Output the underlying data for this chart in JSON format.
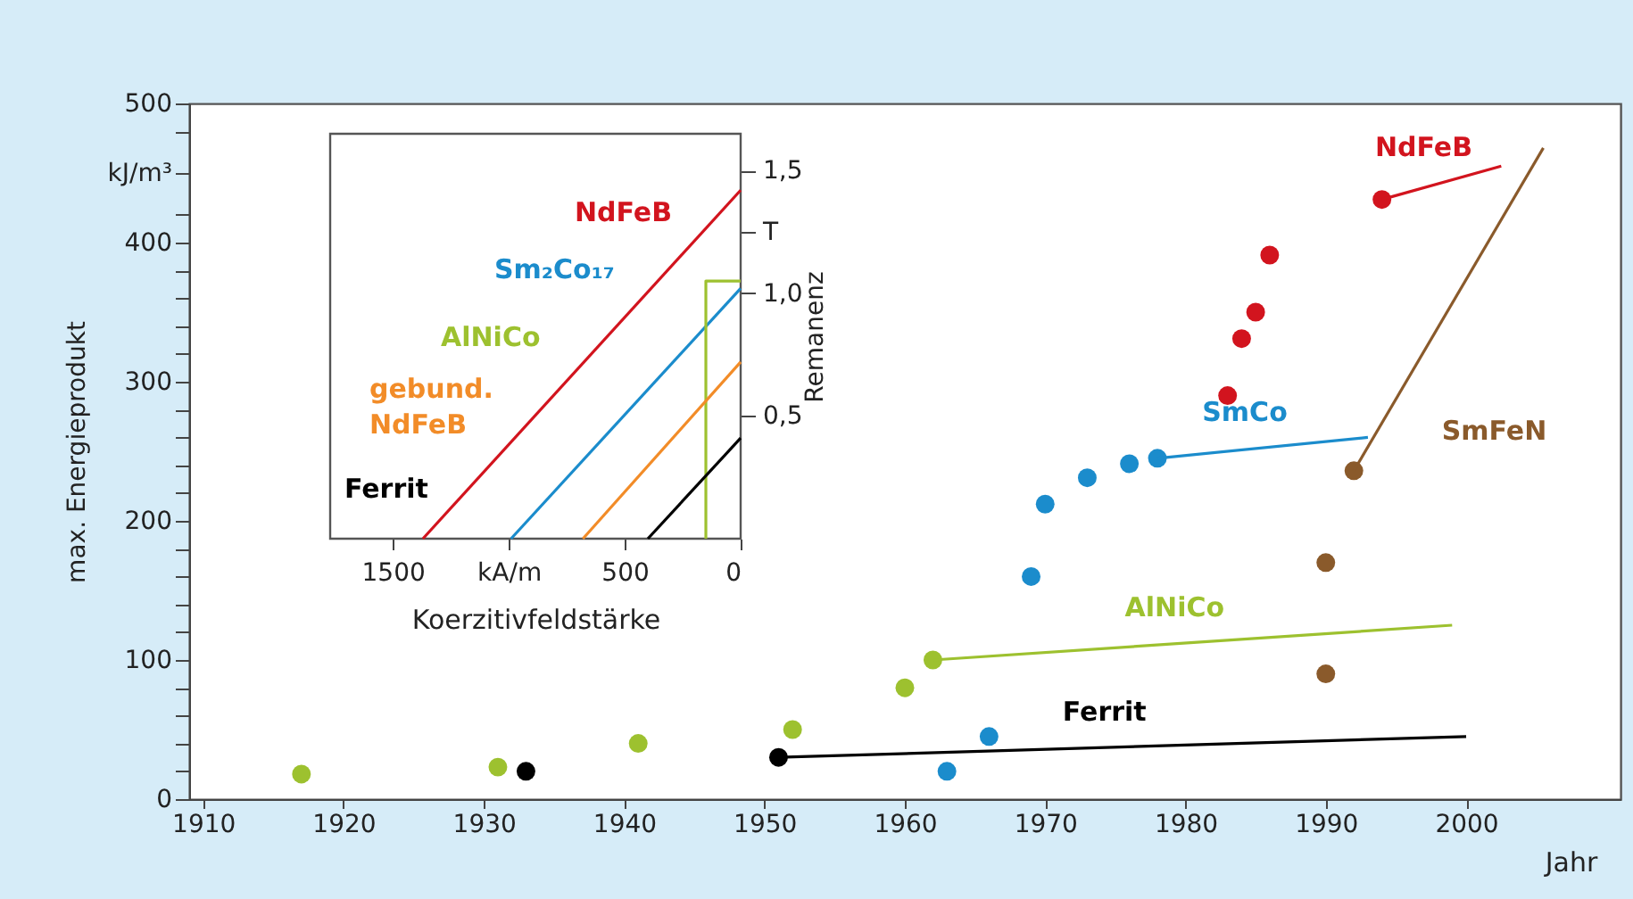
{
  "chart_data": [
    {
      "type": "scatter",
      "xlabel": "Jahr",
      "ylabel": "max. Energieprodukt",
      "xlim": [
        1909,
        2011
      ],
      "ylim": [
        0,
        500
      ],
      "xticks": [
        1910,
        1920,
        1930,
        1940,
        1950,
        1960,
        1970,
        1980,
        1990,
        2000
      ],
      "yticks": [
        0,
        {
          "value": 20,
          "label": null
        },
        {
          "value": 40,
          "label": null
        },
        {
          "value": 60,
          "label": null
        },
        {
          "value": 80,
          "label": null
        },
        100,
        {
          "value": 120,
          "label": null
        },
        {
          "value": 140,
          "label": null
        },
        {
          "value": 160,
          "label": null
        },
        {
          "value": 180,
          "label": null
        },
        200,
        {
          "value": 220,
          "label": null
        },
        {
          "value": 240,
          "label": null
        },
        {
          "value": 260,
          "label": null
        },
        {
          "value": 280,
          "label": null
        },
        300,
        {
          "value": 320,
          "label": null
        },
        {
          "value": 340,
          "label": null
        },
        {
          "value": 360,
          "label": null
        },
        {
          "value": 380,
          "label": null
        },
        400,
        {
          "value": 420,
          "label": null
        },
        {
          "value": 450,
          "label": "kJ/m³"
        },
        {
          "value": 480,
          "label": null
        },
        500
      ],
      "grid": false,
      "marker": "circle",
      "series": [
        {
          "name": "AlNiCo",
          "color": "#9dc12f",
          "x": [
            1917,
            1931,
            1941,
            1952,
            1960,
            1962
          ],
          "values": [
            18,
            23,
            40,
            50,
            80,
            100
          ]
        },
        {
          "type": "line",
          "marker": "none",
          "color": "#9dc12f",
          "x": [
            1962,
            1999
          ],
          "values": [
            100,
            125
          ]
        },
        {
          "name": "Ferrit",
          "color": "#000000",
          "x": [
            1933,
            1951
          ],
          "values": [
            20,
            30
          ]
        },
        {
          "type": "line",
          "marker": "none",
          "color": "#000000",
          "x": [
            1951,
            2000
          ],
          "values": [
            30,
            45
          ]
        },
        {
          "name": "SmCo",
          "color": "#1b8ccc",
          "x": [
            1963,
            1966,
            1969,
            1970,
            1973,
            1976,
            1978
          ],
          "values": [
            20,
            45,
            160,
            212,
            231,
            241,
            245
          ]
        },
        {
          "type": "line",
          "marker": "none",
          "color": "#1b8ccc",
          "x": [
            1978,
            1993
          ],
          "values": [
            245,
            260
          ]
        },
        {
          "name": "NdFeB",
          "color": "#d2141e",
          "x": [
            1983,
            1984,
            1985,
            1986,
            1994
          ],
          "values": [
            290,
            331,
            350,
            391,
            431
          ]
        },
        {
          "type": "line",
          "marker": "none",
          "color": "#d2141e",
          "x": [
            1994,
            2002.5
          ],
          "values": [
            431,
            455
          ]
        },
        {
          "name": "SmFeN",
          "color": "#8a5a2b",
          "x": [
            1990,
            1990,
            1992
          ],
          "values": [
            90,
            170,
            236
          ]
        },
        {
          "type": "line",
          "marker": "none",
          "color": "#8a5a2b",
          "x": [
            1992,
            2005.5
          ],
          "values": [
            236,
            468
          ]
        }
      ]
    },
    {
      "type": "line",
      "xlabel": "Koerzitivfeldstärke",
      "y2label": "Remanenz",
      "xlim": [
        1770,
        0
      ],
      "y2lim": [
        0,
        1.65
      ],
      "xticks": [
        {
          "value": 1500,
          "label": "1500"
        },
        {
          "value": 1000,
          "label": "kA/m"
        },
        500,
        0
      ],
      "y2ticks": [
        {
          "value": 0.5,
          "label": "0,5"
        },
        {
          "value": 1.0,
          "label": "1,0"
        },
        {
          "value": 1.25,
          "label": "T"
        },
        {
          "value": 1.5,
          "label": "1,5"
        }
      ],
      "grid": false,
      "series": [
        {
          "name": "NdFeB",
          "axis": "y2",
          "color": "#d2141e",
          "x": [
            1370,
            0
          ],
          "values": [
            0,
            1.42
          ]
        },
        {
          "name": "Sm₂Co₁₇",
          "axis": "y2",
          "color": "#1b8ccc",
          "x": [
            990,
            0
          ],
          "values": [
            0,
            1.02
          ]
        },
        {
          "name": "AlNiCo",
          "axis": "y2",
          "color": "#9dc12f",
          "x": [
            150,
            150,
            0
          ],
          "values": [
            0,
            1.05,
            1.05
          ]
        },
        {
          "name": "gebund.\nNdFeB",
          "axis": "y2",
          "color": "#f28c28",
          "x": [
            680,
            0
          ],
          "values": [
            0,
            0.72
          ]
        },
        {
          "name": "Ferrit",
          "axis": "y2",
          "color": "#000000",
          "x": [
            400,
            0
          ],
          "values": [
            0,
            0.41
          ]
        }
      ]
    }
  ]
}
